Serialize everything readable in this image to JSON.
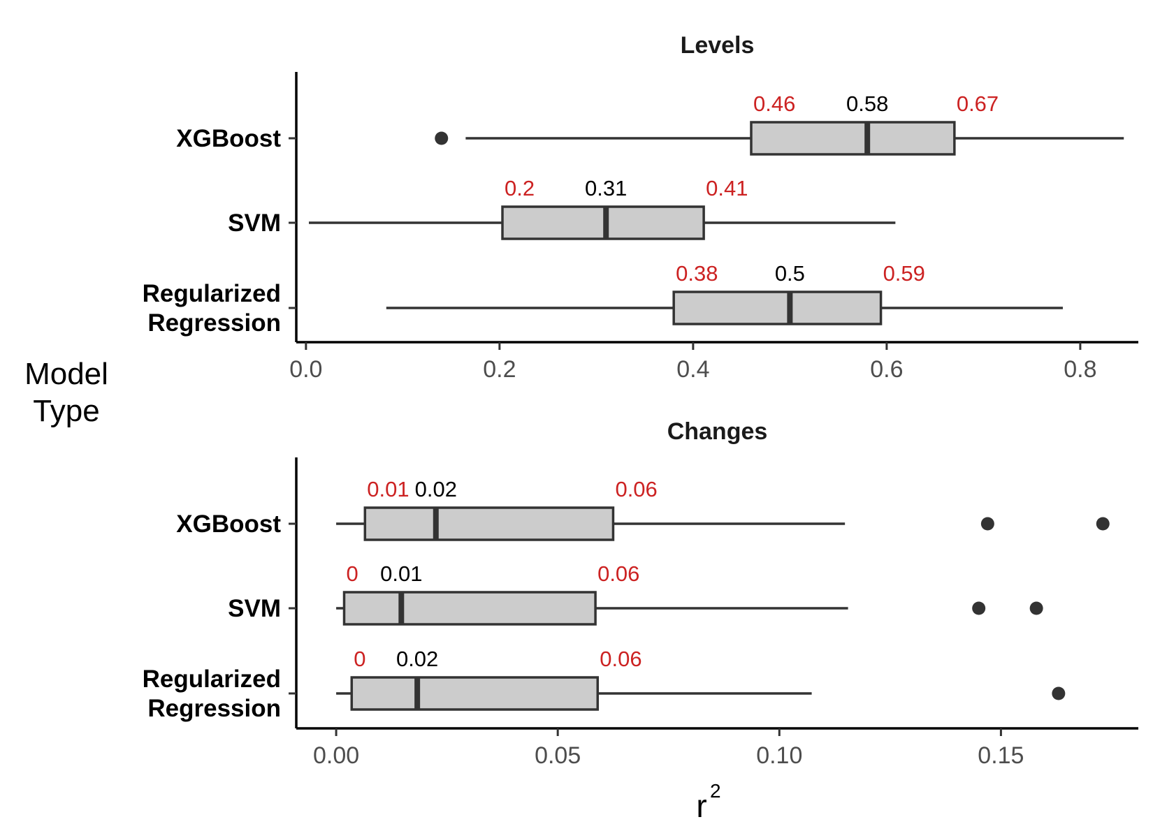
{
  "chart_data": {
    "type": "boxplot",
    "y_title": [
      "Model",
      "Type"
    ],
    "x_title": "r",
    "x_title_superscript": "2",
    "colors": {
      "box_fill": "#cccccc",
      "box_stroke": "#333333",
      "quartile_label": "#cc2222",
      "median_label": "#000000"
    },
    "panels": [
      {
        "title": "Levels",
        "xlim": [
          -0.01,
          0.86
        ],
        "xticks": [
          0.0,
          0.2,
          0.4,
          0.6,
          0.8
        ],
        "xtick_labels": [
          "0.0",
          "0.2",
          "0.4",
          "0.6",
          "0.8"
        ],
        "categories": [
          {
            "name": "XGBoost",
            "name_lines": [
              "XGBoost"
            ],
            "min": 0.165,
            "q1": 0.46,
            "median": 0.58,
            "q3": 0.67,
            "max": 0.845,
            "outliers": [
              0.14
            ],
            "labels": {
              "q1": "0.46",
              "median": "0.58",
              "q3": "0.67"
            }
          },
          {
            "name": "SVM",
            "name_lines": [
              "SVM"
            ],
            "min": 0.003,
            "q1": 0.203,
            "median": 0.31,
            "q3": 0.411,
            "max": 0.609,
            "outliers": [],
            "labels": {
              "q1": "0.2",
              "median": "0.31",
              "q3": "0.41"
            }
          },
          {
            "name": "Regularized Regression",
            "name_lines": [
              "Regularized",
              "Regression"
            ],
            "min": 0.083,
            "q1": 0.38,
            "median": 0.5,
            "q3": 0.594,
            "max": 0.782,
            "outliers": [],
            "labels": {
              "q1": "0.38",
              "median": "0.5",
              "q3": "0.59"
            }
          }
        ]
      },
      {
        "title": "Changes",
        "xlim": [
          -0.009,
          0.181
        ],
        "xticks": [
          0.0,
          0.05,
          0.1,
          0.15
        ],
        "xtick_labels": [
          "0.00",
          "0.05",
          "0.10",
          "0.15"
        ],
        "categories": [
          {
            "name": "XGBoost",
            "name_lines": [
              "XGBoost"
            ],
            "min": 0.0,
            "q1": 0.0065,
            "median": 0.0225,
            "q3": 0.0625,
            "max": 0.1148,
            "outliers": [
              0.147,
              0.173
            ],
            "labels": {
              "q1": "0.01",
              "median": "0.02",
              "q3": "0.06"
            }
          },
          {
            "name": "SVM",
            "name_lines": [
              "SVM"
            ],
            "min": 0.0,
            "q1": 0.0018,
            "median": 0.0147,
            "q3": 0.0585,
            "max": 0.1155,
            "outliers": [
              0.145,
              0.158
            ],
            "labels": {
              "q1": "0",
              "median": "0.01",
              "q3": "0.06"
            }
          },
          {
            "name": "Regularized Regression",
            "name_lines": [
              "Regularized",
              "Regression"
            ],
            "min": 0.0,
            "q1": 0.0035,
            "median": 0.0183,
            "q3": 0.059,
            "max": 0.1073,
            "outliers": [
              0.163
            ],
            "labels": {
              "q1": "0",
              "median": "0.02",
              "q3": "0.06"
            }
          }
        ]
      }
    ]
  }
}
